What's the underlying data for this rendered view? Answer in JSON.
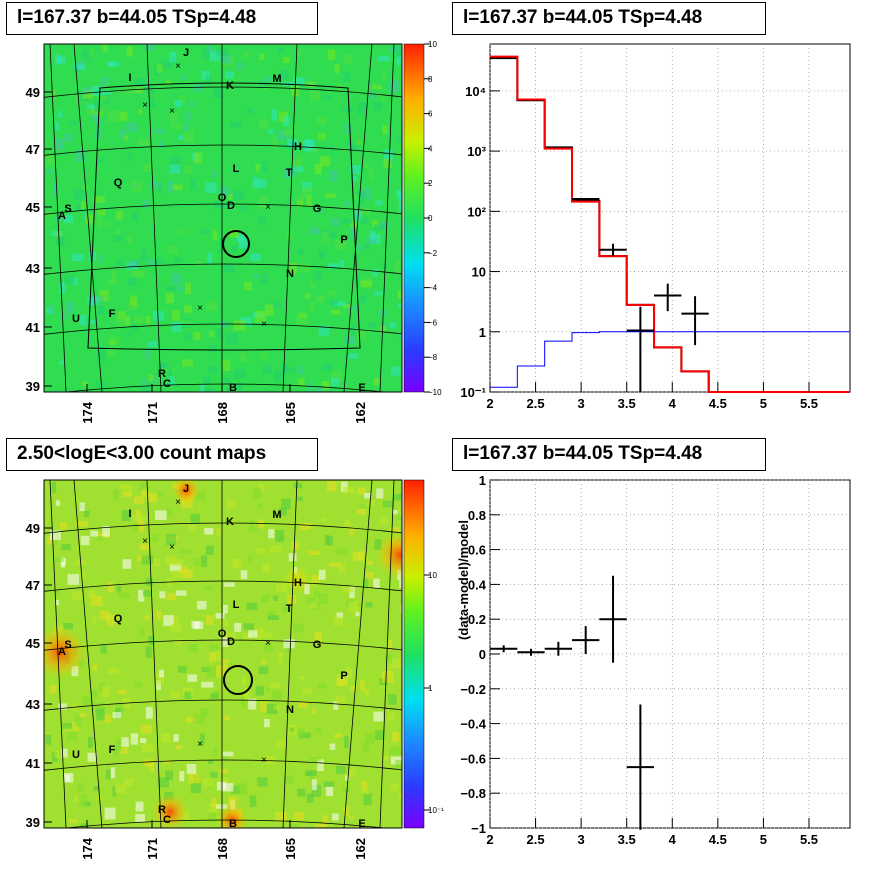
{
  "panels": {
    "tl_title": "l=167.37 b=44.05 TSp=4.48",
    "tr_title": "l=167.37 b=44.05 TSp=4.48",
    "bl_title": "2.50<logE<3.00 count maps",
    "br_title": "l=167.37 b=44.05 TSp=4.48"
  },
  "chart_data": [
    {
      "type": "heatmap",
      "title": "l=167.37 b=44.05 TSp=4.48",
      "x_ticks": [
        "174",
        "171",
        "168",
        "165",
        "162"
      ],
      "y_ticks": [
        "49",
        "47",
        "45",
        "43",
        "41",
        "39"
      ],
      "colorbar_ticks": [
        "10",
        "8",
        "6",
        "4",
        "2",
        "0",
        "−2",
        "−4",
        "−6",
        "−8",
        "−10"
      ],
      "z_range": [
        -10,
        10
      ],
      "source_labels": [
        "J",
        "I",
        "K",
        "M",
        "H",
        "L",
        "T",
        "Q",
        "O",
        "D",
        "G",
        "A",
        "S",
        "P",
        "N",
        "U",
        "F",
        "R",
        "C",
        "B",
        "E"
      ]
    },
    {
      "type": "line",
      "title": "l=167.37 b=44.05 TSp=4.48",
      "x_ticks": [
        "2",
        "2.5",
        "3",
        "3.5",
        "4",
        "4.5",
        "5",
        "5.5"
      ],
      "xlim": [
        2,
        5.95
      ],
      "y_scale": "log",
      "ylim": [
        0.1,
        60000
      ],
      "y_ticks": [
        "10⁻¹",
        "1",
        "10",
        "10²",
        "10³",
        "10⁴"
      ],
      "grid": true,
      "bin_edges": [
        2.0,
        2.3,
        2.6,
        2.9,
        3.2,
        3.5,
        3.8,
        4.1,
        4.4,
        5.95
      ],
      "series": [
        {
          "color": "#000000",
          "style": "step",
          "values": [
            35000,
            7000,
            1150,
            150,
            18,
            2.8,
            0.55,
            0.22,
            0.1
          ]
        },
        {
          "color": "#ff0000",
          "style": "step",
          "values": [
            37000,
            7200,
            1100,
            145,
            18,
            2.8,
            0.55,
            0.22,
            0.1
          ]
        },
        {
          "color": "#0000ff",
          "style": "step",
          "values": [
            0.12,
            0.27,
            0.7,
            0.97,
            1.0,
            1.0,
            1.0,
            1.0,
            1.0
          ]
        }
      ],
      "points": [
        {
          "x": 3.05,
          "y": 160,
          "xerr": 0.15,
          "ylo": 155,
          "yhi": 165
        },
        {
          "x": 3.35,
          "y": 23,
          "xerr": 0.15,
          "ylo": 18,
          "yhi": 29
        },
        {
          "x": 3.65,
          "y": 1.05,
          "xerr": 0.15,
          "ylo": 0.1,
          "yhi": 2.6
        },
        {
          "x": 3.95,
          "y": 4.0,
          "xerr": 0.15,
          "ylo": 2.2,
          "yhi": 6.3
        },
        {
          "x": 4.25,
          "y": 2.0,
          "xerr": 0.15,
          "ylo": 0.6,
          "yhi": 3.9
        }
      ]
    },
    {
      "type": "heatmap",
      "title": "2.50<logE<3.00 count maps",
      "x_ticks": [
        "174",
        "171",
        "168",
        "165",
        "162"
      ],
      "y_ticks": [
        "49",
        "47",
        "45",
        "43",
        "41",
        "39"
      ],
      "colorbar_ticks": [
        "10",
        "1",
        "10⁻¹"
      ],
      "z_scale": "log",
      "source_labels": [
        "J",
        "I",
        "K",
        "M",
        "H",
        "L",
        "T",
        "Q",
        "O",
        "D",
        "G",
        "A",
        "S",
        "P",
        "N",
        "U",
        "F",
        "R",
        "C",
        "B",
        "E"
      ]
    },
    {
      "type": "scatter",
      "title": "l=167.37 b=44.05 TSp=4.48",
      "ylabel": "(data-model)/model",
      "x_ticks": [
        "2",
        "2.5",
        "3",
        "3.5",
        "4",
        "4.5",
        "5",
        "5.5"
      ],
      "xlim": [
        2,
        5.95
      ],
      "y_ticks": [
        "1",
        "0.8",
        "0.6",
        "0.4",
        "0.2",
        "0",
        "−0.2",
        "−0.4",
        "−0.6",
        "−0.8",
        "−1"
      ],
      "ylim": [
        -1,
        1
      ],
      "grid": true,
      "points": [
        {
          "x": 2.15,
          "y": 0.03,
          "xerr": 0.15,
          "yerr": 0.02
        },
        {
          "x": 2.45,
          "y": 0.01,
          "xerr": 0.15,
          "yerr": 0.02
        },
        {
          "x": 2.75,
          "y": 0.03,
          "xerr": 0.15,
          "yerr": 0.04
        },
        {
          "x": 3.05,
          "y": 0.08,
          "xerr": 0.15,
          "yerr": 0.08
        },
        {
          "x": 3.35,
          "y": 0.2,
          "xerr": 0.15,
          "yerr": 0.25
        },
        {
          "x": 3.65,
          "y": -0.65,
          "xerr": 0.15,
          "yerr": 0.36
        }
      ]
    }
  ]
}
